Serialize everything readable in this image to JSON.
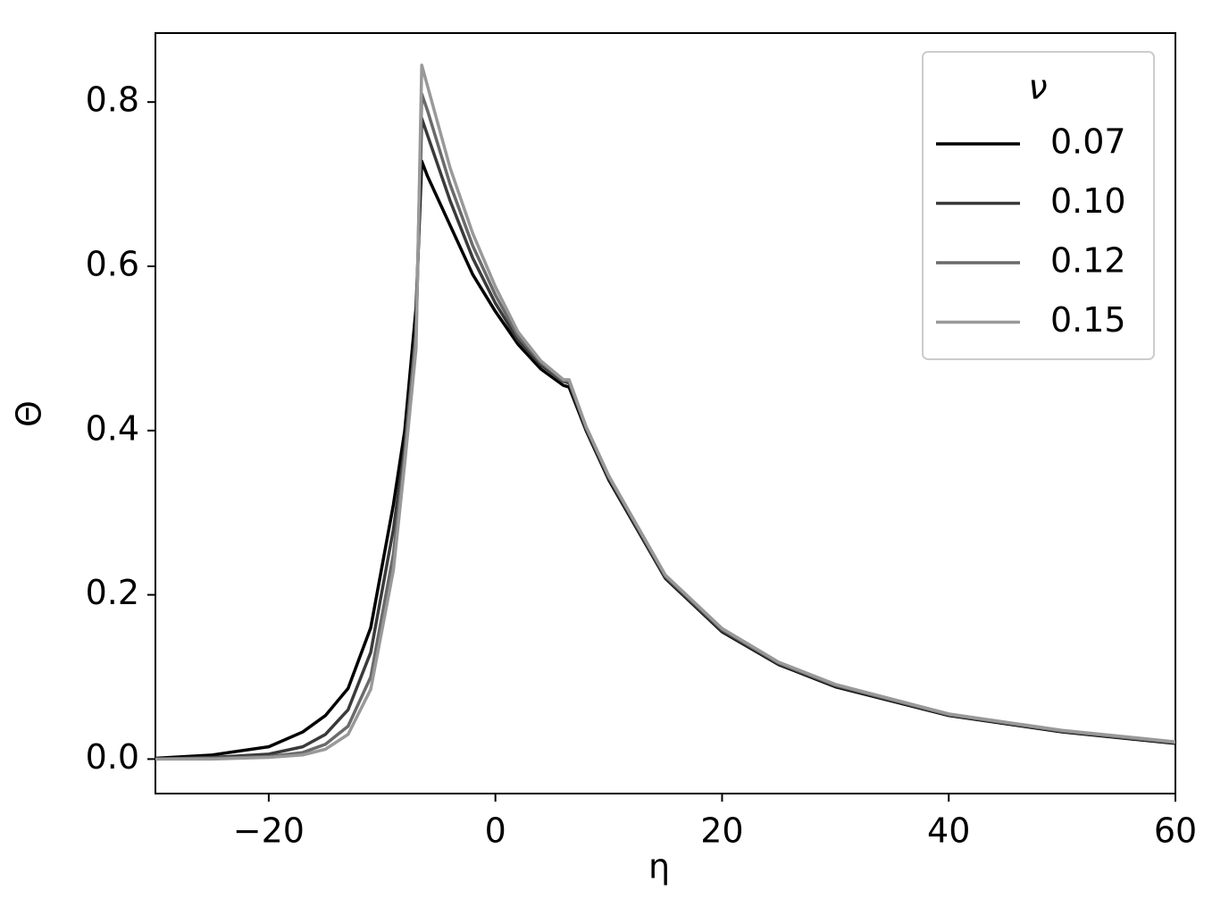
{
  "chart_data": {
    "type": "line",
    "x_label": "η",
    "y_label": "Θ",
    "legend_title": "ν",
    "legend_position": "upper right",
    "x": [
      -30,
      -25,
      -20,
      -17,
      -15,
      -13,
      -11,
      -9,
      -8,
      -7,
      -6.5,
      -6,
      -4,
      -2,
      0,
      2,
      4,
      6,
      6.5,
      8,
      10,
      15,
      20,
      25,
      30,
      40,
      50,
      60
    ],
    "series": [
      {
        "name": "0.07",
        "color": "#000000",
        "values": [
          0.001,
          0.005,
          0.015,
          0.033,
          0.053,
          0.086,
          0.16,
          0.31,
          0.4,
          0.55,
          0.728,
          0.71,
          0.65,
          0.59,
          0.545,
          0.505,
          0.475,
          0.455,
          0.453,
          0.4,
          0.34,
          0.22,
          0.155,
          0.115,
          0.088,
          0.053,
          0.033,
          0.019
        ]
      },
      {
        "name": "0.10",
        "color": "#3a3a3a",
        "values": [
          0.0,
          0.002,
          0.006,
          0.015,
          0.03,
          0.06,
          0.13,
          0.28,
          0.38,
          0.52,
          0.78,
          0.76,
          0.68,
          0.61,
          0.555,
          0.51,
          0.48,
          0.46,
          0.458,
          0.402,
          0.342,
          0.221,
          0.156,
          0.116,
          0.089,
          0.054,
          0.034,
          0.02
        ]
      },
      {
        "name": "0.12",
        "color": "#6a6a6a",
        "values": [
          0.0,
          0.001,
          0.003,
          0.008,
          0.018,
          0.04,
          0.1,
          0.25,
          0.37,
          0.52,
          0.81,
          0.79,
          0.7,
          0.625,
          0.565,
          0.515,
          0.483,
          0.461,
          0.46,
          0.404,
          0.344,
          0.223,
          0.158,
          0.117,
          0.09,
          0.054,
          0.034,
          0.02
        ]
      },
      {
        "name": "0.15",
        "color": "#999999",
        "values": [
          0.0,
          0.0,
          0.002,
          0.005,
          0.012,
          0.03,
          0.085,
          0.23,
          0.36,
          0.5,
          0.845,
          0.82,
          0.72,
          0.64,
          0.575,
          0.52,
          0.485,
          0.462,
          0.462,
          0.405,
          0.345,
          0.224,
          0.159,
          0.118,
          0.091,
          0.055,
          0.035,
          0.021
        ]
      }
    ],
    "xlim": [
      -30,
      60
    ],
    "ylim": [
      -0.042,
      0.884
    ],
    "xticks": [
      {
        "value": -20,
        "label": "−20"
      },
      0,
      20,
      40,
      60
    ],
    "yticks": [
      {
        "value": 0,
        "label": "0.0"
      },
      0.2,
      0.4,
      0.6,
      0.8
    ],
    "grid": false
  }
}
